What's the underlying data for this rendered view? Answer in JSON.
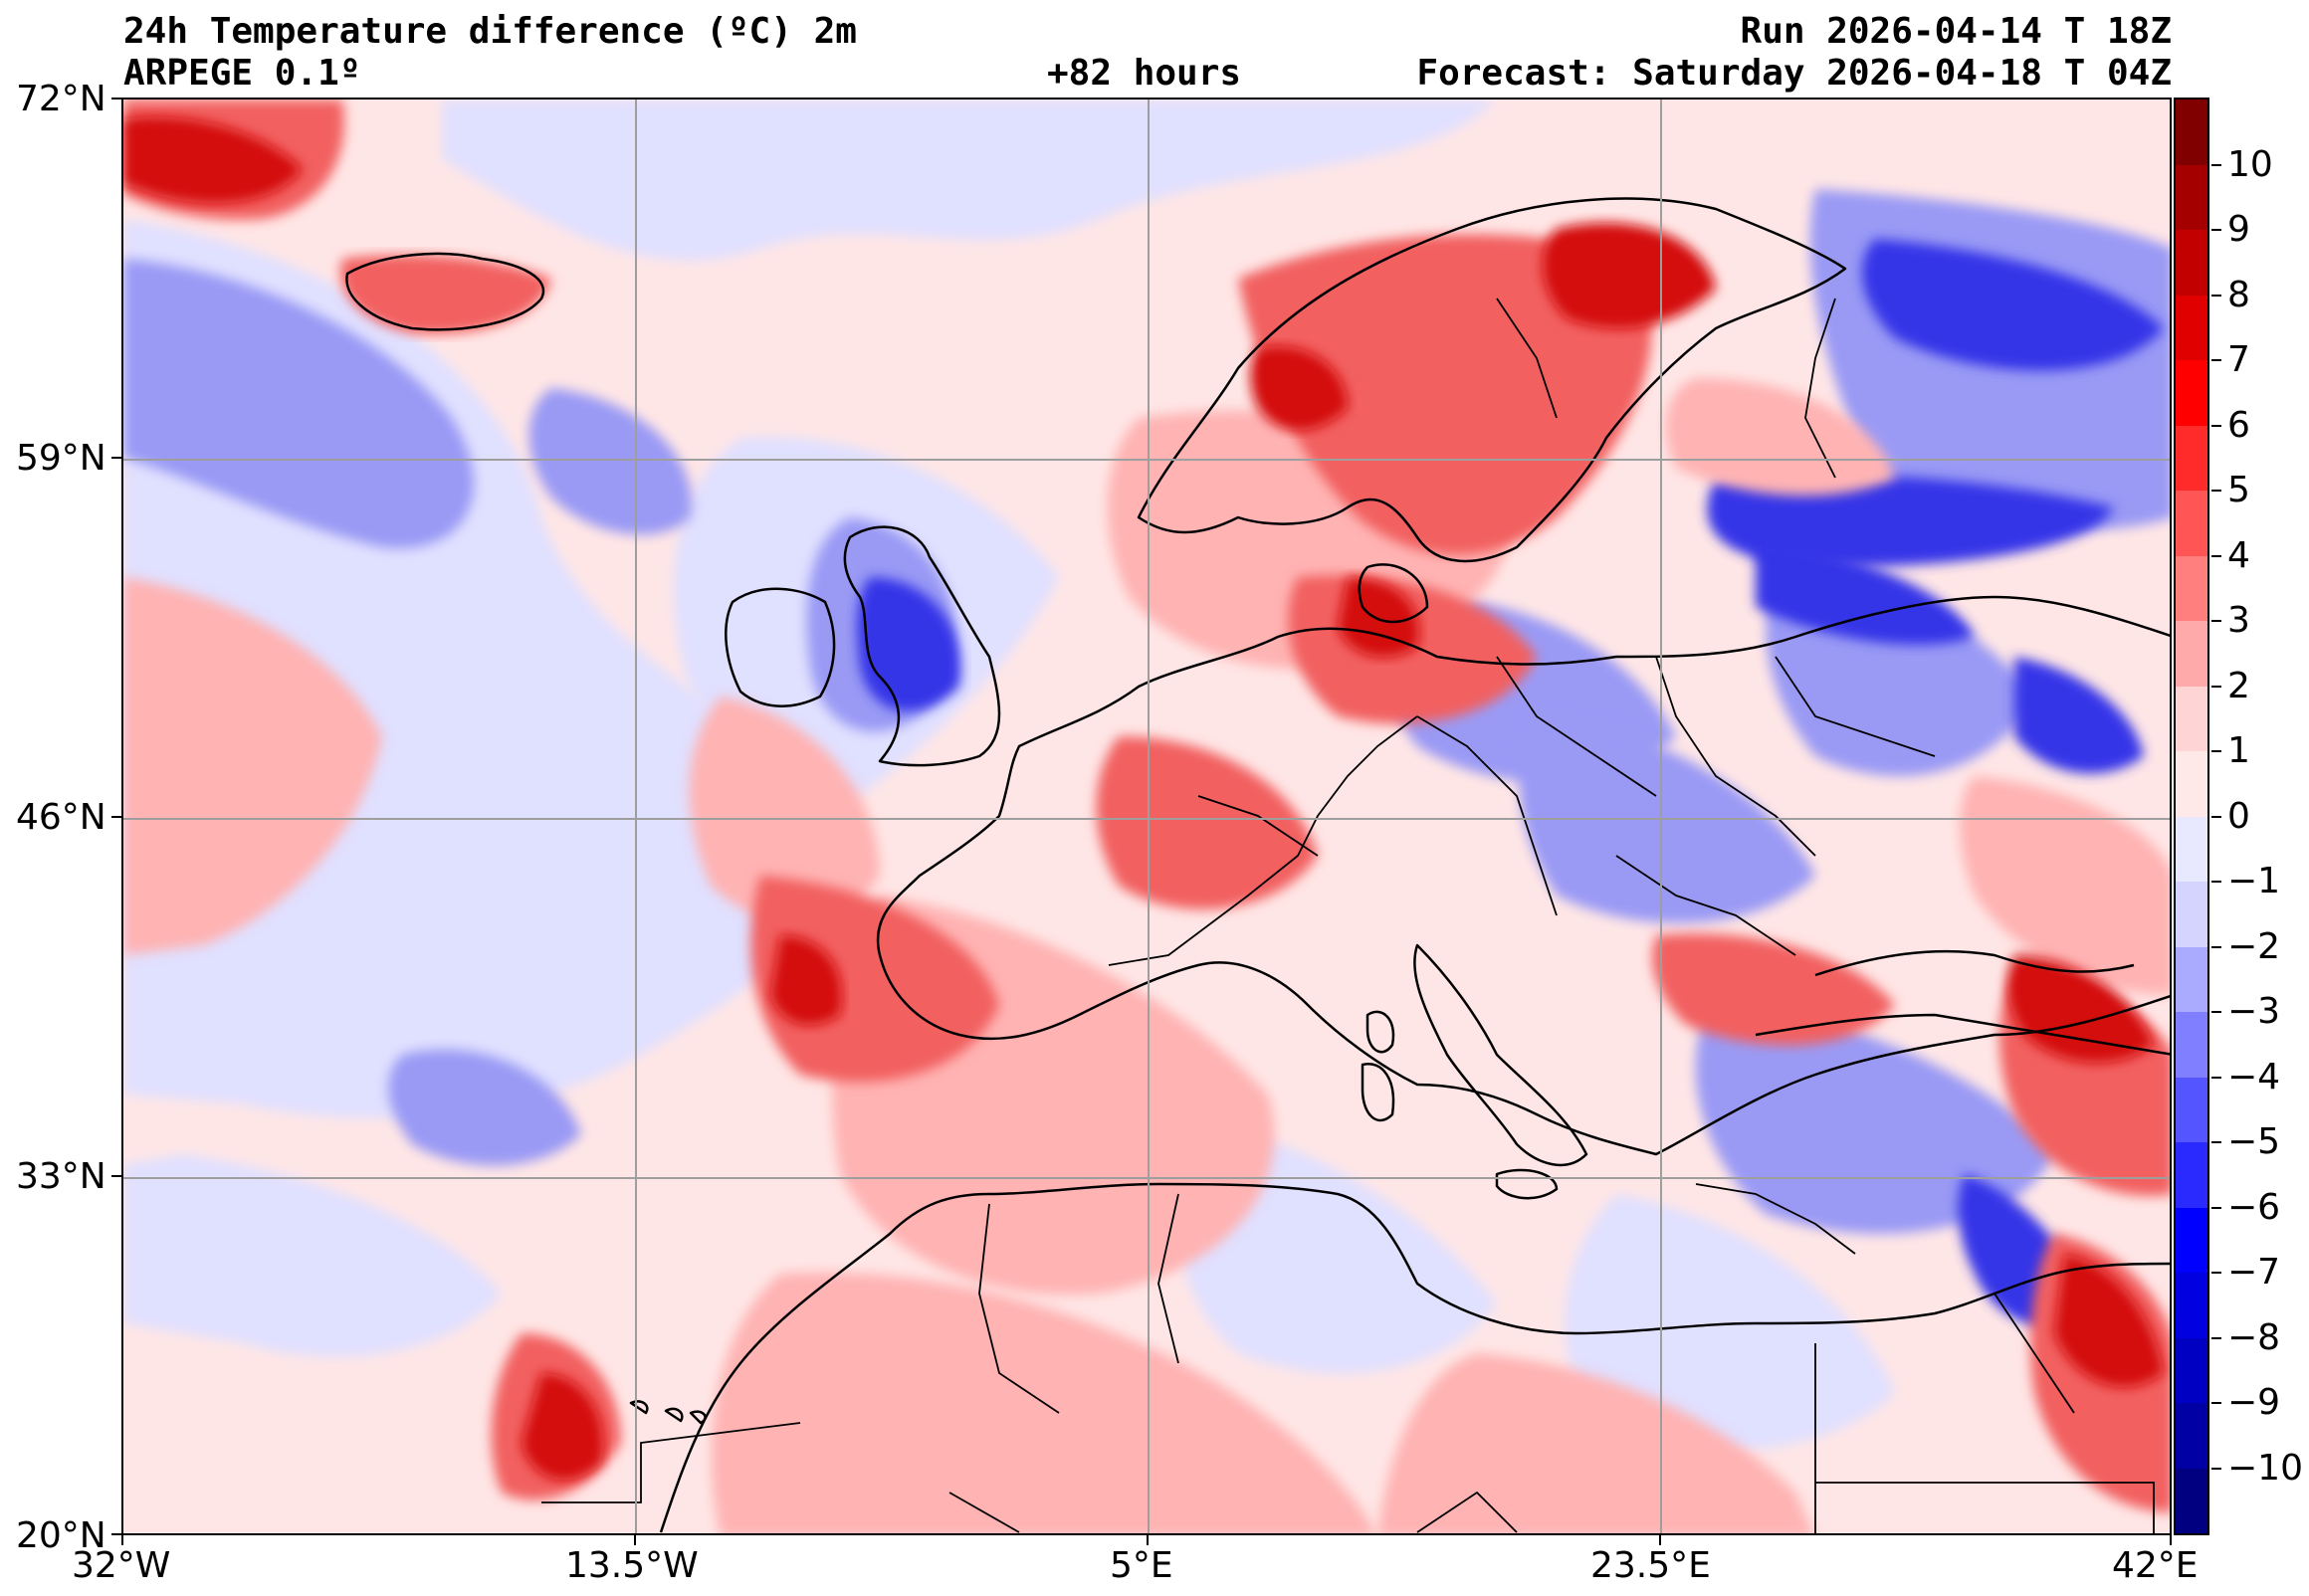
{
  "header": {
    "title_line1": "24h Temperature difference (ºC) 2m",
    "title_line2": "ARPEGE 0.1º",
    "lead": "+82 hours",
    "run": "Run 2026-04-14 T 18Z",
    "forecast": "Forecast: Saturday 2026-04-18 T 04Z"
  },
  "axes": {
    "lat_labels": [
      "72°N",
      "59°N",
      "46°N",
      "33°N",
      "20°N"
    ],
    "lon_labels": [
      "32°W",
      "13.5°W",
      "5°E",
      "23.5°E",
      "42°E"
    ]
  },
  "colorbar": {
    "labels": [
      "10",
      "9",
      "8",
      "7",
      "6",
      "5",
      "4",
      "3",
      "2",
      "1",
      "0",
      "−1",
      "−2",
      "−3",
      "−4",
      "−5",
      "−6",
      "−7",
      "−8",
      "−9",
      "−10"
    ],
    "colors": [
      "#800000",
      "#a50000",
      "#c20000",
      "#e00000",
      "#ff0000",
      "#ff2a2a",
      "#ff5555",
      "#ff7f7f",
      "#ffaaaa",
      "#ffd4d4",
      "#ffe8e8",
      "#e8e8ff",
      "#d4d4ff",
      "#aaaaff",
      "#7f7fff",
      "#5555ff",
      "#2a2aff",
      "#0000ff",
      "#0000e0",
      "#0000c2",
      "#0000a5",
      "#000080"
    ]
  },
  "palette": {
    "ocean_base": "#ffe6e6",
    "cool": "#e0e0ff",
    "blue_mid": "#9a9af5",
    "blue_dark": "#3535e8",
    "red_light": "#ffb3b3",
    "red_mid": "#f26060",
    "red_dark": "#d41010",
    "border": "#000000",
    "grid": "#9e9e9e"
  }
}
